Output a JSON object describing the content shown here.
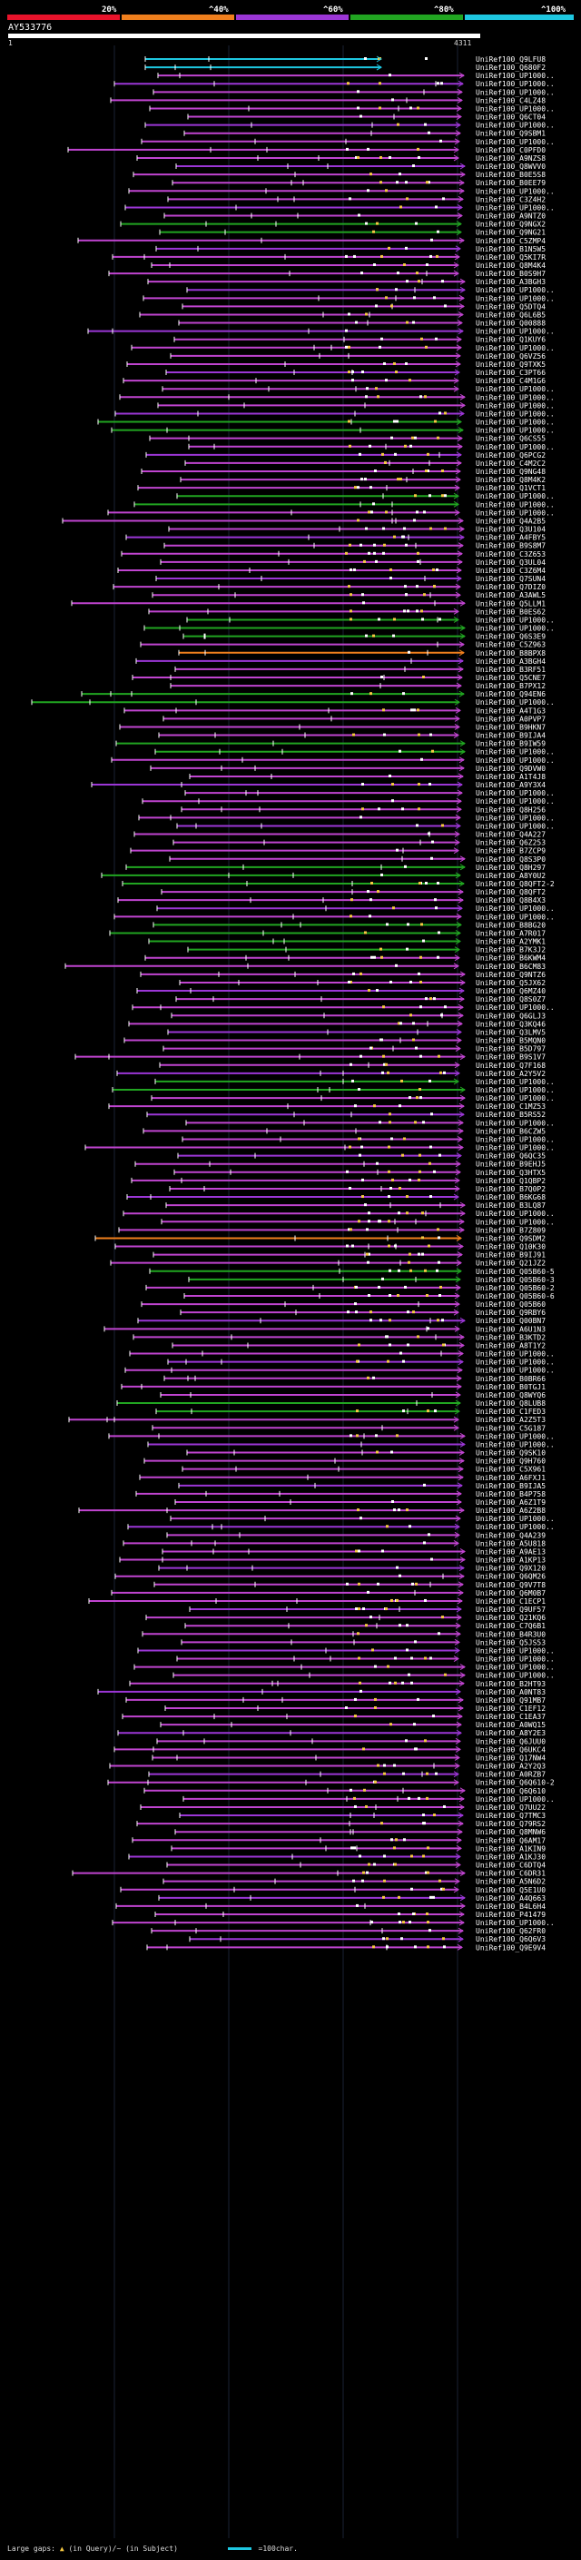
{
  "legend": {
    "labels": [
      "20%",
      "^40%",
      "^60%",
      "^80%",
      "^100%"
    ],
    "colors": [
      "#e8132b",
      "#f07f1d",
      "#9b36d6",
      "#21a521",
      "#1ec7e0"
    ]
  },
  "query": {
    "id": "AY533776",
    "start_label": "1",
    "end_label": "4311"
  },
  "hit_colors": {
    "cyan": "#1ec7e0",
    "green": "#21a521",
    "purple": "#9b36d6",
    "magenta": "#c044d0",
    "orange": "#f07f1d",
    "gap": "#f5c842",
    "tick": "#ffffff"
  },
  "hit_labels": [
    "UniRef100_Q9LFU8",
    "UniRef100_Q680F2",
    "UniRef100_UP1000..",
    "UniRef100_UP1000..",
    "UniRef100_UP1000..",
    "UniRef100_C4LZ48",
    "UniRef100_UP1000..",
    "UniRef100_Q6CT04",
    "UniRef100_UP1000..",
    "UniRef100_Q9SBM1",
    "UniRef100_UP1000..",
    "UniRef100_C0PFD0",
    "UniRef100_A9NZS8",
    "UniRef100_Q8WVV0",
    "UniRef100_B0E5S8",
    "UniRef100_B0EE79",
    "UniRef100_UP1000..",
    "UniRef100_C3Z4H2",
    "UniRef100_UP1000..",
    "UniRef100_A9NTZ0",
    "UniRef100_Q9NGX2",
    "UniRef100_Q9NG21",
    "UniRef100_C5ZMP4",
    "UniRef100_B1N5W5",
    "UniRef100_Q5KI7R",
    "UniRef100_Q8M4K4",
    "UniRef100_B0S9H7",
    "UniRef100_A3BGH3",
    "UniRef100_UP1000..",
    "UniRef100_UP1000..",
    "UniRef100_Q5DTQ4",
    "UniRef100_Q6L6B5",
    "UniRef100_Q00888",
    "UniRef100_UP1000..",
    "UniRef100_Q1KUY6",
    "UniRef100_UP1000..",
    "UniRef100_Q6VZ56",
    "UniRef100_Q9TXK5",
    "UniRef100_C3PT66",
    "UniRef100_C4M1G6",
    "UniRef100_UP1000..",
    "UniRef100_UP1000..",
    "UniRef100_UP1000..",
    "UniRef100_UP1000..",
    "UniRef100_UP1000..",
    "UniRef100_UP1000..",
    "UniRef100_Q6CS55",
    "UniRef100_UP1000..",
    "UniRef100_Q6PCG2",
    "UniRef100_C4M2C2",
    "UniRef100_Q9NG48",
    "UniRef100_Q8M4K2",
    "UniRef100_Q1VCT1",
    "UniRef100_UP1000..",
    "UniRef100_UP1000..",
    "UniRef100_UP1000..",
    "UniRef100_Q4A2B5",
    "UniRef100_Q3U104",
    "UniRef100_A4FBY5",
    "UniRef100_B9S8M7",
    "UniRef100_C3Z653",
    "UniRef100_Q3UL04",
    "UniRef100_C3Z6M4",
    "UniRef100_Q7SUN4",
    "UniRef100_Q7DIZ0",
    "UniRef100_A3AWL5",
    "UniRef100_Q5LLM1",
    "UniRef100_B0ES62",
    "UniRef100_UP1000..",
    "UniRef100_UP1000..",
    "UniRef100_Q6S3E9",
    "UniRef100_C5Z963",
    "UniRef100_B8BPX8",
    "UniRef100_A3BGH4",
    "UniRef100_B3RF51",
    "UniRef100_Q5CNE7",
    "UniRef100_B7PX12",
    "UniRef100_Q94EN6",
    "UniRef100_UP1000..",
    "UniRef100_A4T1G3",
    "UniRef100_A0PVP7",
    "UniRef100_B9HKN7",
    "UniRef100_B9IJA4",
    "UniRef100_B9IW59",
    "UniRef100_UP1000..",
    "UniRef100_UP1000..",
    "UniRef100_Q9DVW0",
    "UniRef100_A1T4J8",
    "UniRef100_A9Y3X4",
    "UniRef100_UP1000..",
    "UniRef100_UP1000..",
    "UniRef100_Q8H256",
    "UniRef100_UP1000..",
    "UniRef100_UP1000..",
    "UniRef100_Q4A227",
    "UniRef100_Q6Z253",
    "UniRef100_B7ZCP9",
    "UniRef100_Q8S3P0",
    "UniRef100_Q8H297",
    "UniRef100_A8Y0U2",
    "UniRef100_Q8QFT2-2",
    "UniRef100_Q8QFT2",
    "UniRef100_Q8B4X3",
    "UniRef100_UP1000..",
    "UniRef100_UP1000..",
    "UniRef100_B8BG20",
    "UniRef100_A7R017",
    "UniRef100_A2YMK1",
    "UniRef100_B7K3J2",
    "UniRef100_B6KWM4",
    "UniRef100_B6CM83",
    "UniRef100_Q9NTZ6",
    "UniRef100_Q5JX62",
    "UniRef100_Q6MZ40",
    "UniRef100_Q8S0Z7",
    "UniRef100_UP1000..",
    "UniRef100_Q6GLJ3",
    "UniRef100_Q3KQ46",
    "UniRef100_Q3LMV5",
    "UniRef100_B5MQN0",
    "UniRef100_B5D797",
    "UniRef100_B9S1V7",
    "UniRef100_Q7F168",
    "UniRef100_A2Y5V2",
    "UniRef100_UP1000..",
    "UniRef100_UP1000..",
    "UniRef100_UP1000..",
    "UniRef100_C1MZ53",
    "UniRef100_B5RS52",
    "UniRef100_UP1000..",
    "UniRef100_B6CZW5",
    "UniRef100_UP1000..",
    "UniRef100_UP1000..",
    "UniRef100_Q6QC35",
    "UniRef100_B9EHJ5",
    "UniRef100_Q3HTX5",
    "UniRef100_Q1QBP2",
    "UniRef100_B7Q0P2",
    "UniRef100_B6KG68",
    "UniRef100_B3LQ87",
    "UniRef100_UP1000..",
    "UniRef100_UP1000..",
    "UniRef100_B7Z809",
    "UniRef100_Q9SDM2",
    "UniRef100_Q10K30",
    "UniRef100_B9IJ91",
    "UniRef100_Q21JZ2",
    "UniRef100_Q05B60-5",
    "UniRef100_Q05B60-3",
    "UniRef100_Q05B60-2",
    "UniRef100_Q05B60-6",
    "UniRef100_Q05B60",
    "UniRef100_Q9RBY6",
    "UniRef100_Q00BN7",
    "UniRef100_A6U1N3",
    "UniRef100_B3KTD2",
    "UniRef100_A8T1Y2",
    "UniRef100_UP1000..",
    "UniRef100_UP1000..",
    "UniRef100_UP1000..",
    "UniRef100_B0BR66",
    "UniRef100_B0TGJ1",
    "UniRef100_Q8WYQ6",
    "UniRef100_Q8LUB8",
    "UniRef100_C1FED3",
    "UniRef100_A2Z5T3",
    "UniRef100_C5G187",
    "UniRef100_UP1000..",
    "UniRef100_UP1000..",
    "UniRef100_Q9SK10",
    "UniRef100_Q9H760",
    "UniRef100_C5X961",
    "UniRef100_A6FXJ1",
    "UniRef100_B9IJA5",
    "UniRef100_B4P758",
    "UniRef100_A6Z1T9",
    "UniRef100_A6Z2B8",
    "UniRef100_UP1000..",
    "UniRef100_UP1000..",
    "UniRef100_Q4A239",
    "UniRef100_A5U818",
    "UniRef100_A9AE13",
    "UniRef100_A1KP13",
    "UniRef100_Q9X120",
    "UniRef100_Q6QM26",
    "UniRef100_Q9V7T8",
    "UniRef100_Q6M0B7",
    "UniRef100_C1ECP1",
    "UniRef100_Q9UF57",
    "UniRef100_Q21KQ6",
    "UniRef100_C7Q6B1",
    "UniRef100_B4R3U0",
    "UniRef100_Q5JS53",
    "UniRef100_UP1000..",
    "UniRef100_UP1000..",
    "UniRef100_UP1000..",
    "UniRef100_UP1000..",
    "UniRef100_B2HT93",
    "UniRef100_A0NT83",
    "UniRef100_Q91MB7",
    "UniRef100_C1EF12",
    "UniRef100_C1EA37",
    "UniRef100_A0WQ15",
    "UniRef100_A8Y2E3",
    "UniRef100_Q6JUU0",
    "UniRef100_Q6UKC4",
    "UniRef100_Q17NW4",
    "UniRef100_A2Y2Q3",
    "UniRef100_A0RZB7",
    "UniRef100_Q6Q610-2",
    "UniRef100_Q6Q610",
    "UniRef100_UP1000..",
    "UniRef100_Q7UU22",
    "UniRef100_Q7TMC3",
    "UniRef100_Q79RS2",
    "UniRef100_Q8MNW6",
    "UniRef100_Q6AM17",
    "UniRef100_A1KIN9",
    "UniRef100_A1KJ30",
    "UniRef100_C6DTQ4",
    "UniRef100_C6DR31",
    "UniRef100_A5N6D2",
    "UniRef100_Q5E1U0",
    "UniRef100_A4Q663",
    "UniRef100_B4L6H4",
    "UniRef100_P41479",
    "UniRef100_UP1000..",
    "UniRef100_Q62FR0",
    "UniRef100_Q6Q6V3",
    "UniRef100_Q9E9V4"
  ],
  "footer": {
    "gaps_label": "Large gaps:",
    "gap_glyph": "▲",
    "gap_text": "(in Query)/~ (in Subject)",
    "scale_text": "=100char."
  }
}
